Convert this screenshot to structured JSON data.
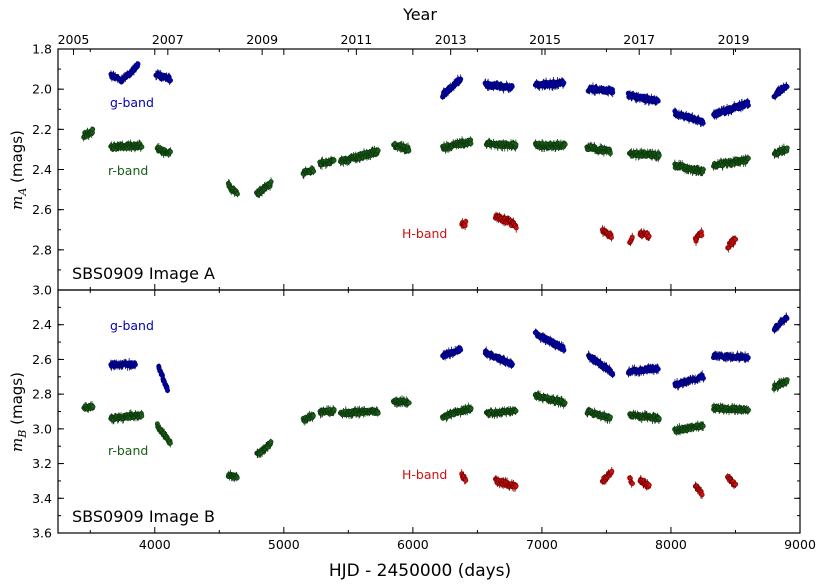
{
  "chart_data": {
    "type": "scatter",
    "xlabel": "HJD - 2450000 (days)",
    "top_axis_label": "Year",
    "xlim": [
      3250,
      9000
    ],
    "x_ticks": [
      "4000",
      "5000",
      "6000",
      "7000",
      "8000",
      "9000"
    ],
    "x_tick_values": [
      4000,
      5000,
      6000,
      7000,
      8000,
      9000
    ],
    "year_ticks": [
      "2005",
      "2007",
      "2009",
      "2011",
      "2013",
      "2015",
      "2017",
      "2019"
    ],
    "year_tick_values": [
      3370,
      4101,
      4832,
      5562,
      6293,
      7024,
      7754,
      8485
    ],
    "colors": {
      "g": "#0000b4",
      "r": "#1a5e1a",
      "H": "#cc1111"
    },
    "panels": [
      {
        "id": "A",
        "title": "SBS0909 Image A",
        "ylabel_main": "m",
        "ylabel_sub": "A",
        "ylabel_unit": " (mags)",
        "ylim": [
          1.8,
          3.0
        ],
        "y_ticks": [
          "1.8",
          "2.0",
          "2.2",
          "2.4",
          "2.6",
          "2.8",
          "3.0"
        ],
        "y_tick_values": [
          1.8,
          2.0,
          2.2,
          2.4,
          2.6,
          2.8,
          3.0
        ],
        "band_labels": {
          "g": "g-band",
          "r": "r-band",
          "H": "H-band"
        },
        "series": [
          {
            "name": "g-band",
            "band": "g",
            "segments": [
              [
                3660,
                3720,
                1.93,
                1.95
              ],
              [
                3740,
                3870,
                1.96,
                1.88
              ],
              [
                4010,
                4120,
                1.93,
                1.95
              ],
              [
                6230,
                6370,
                2.03,
                1.95
              ],
              [
                6560,
                6770,
                1.98,
                1.99
              ],
              [
                6950,
                7170,
                1.98,
                1.97
              ],
              [
                7360,
                7550,
                2.0,
                2.01
              ],
              [
                7670,
                7900,
                2.03,
                2.06
              ],
              [
                8030,
                8250,
                2.12,
                2.16
              ],
              [
                8330,
                8600,
                2.13,
                2.07
              ],
              [
                8800,
                8900,
                2.03,
                1.98
              ]
            ]
          },
          {
            "name": "r-band",
            "band": "r",
            "segments": [
              [
                3450,
                3520,
                2.23,
                2.21
              ],
              [
                3660,
                3900,
                2.29,
                2.28
              ],
              [
                4020,
                4120,
                2.3,
                2.32
              ],
              [
                4570,
                4640,
                2.48,
                2.52
              ],
              [
                4790,
                4900,
                2.52,
                2.47
              ],
              [
                5150,
                5230,
                2.42,
                2.4
              ],
              [
                5280,
                5390,
                2.37,
                2.36
              ],
              [
                5440,
                5730,
                2.36,
                2.31
              ],
              [
                5850,
                5970,
                2.28,
                2.3
              ],
              [
                6230,
                6450,
                2.29,
                2.26
              ],
              [
                6570,
                6800,
                2.27,
                2.28
              ],
              [
                6950,
                7180,
                2.28,
                2.28
              ],
              [
                7350,
                7530,
                2.29,
                2.31
              ],
              [
                7680,
                7910,
                2.32,
                2.33
              ],
              [
                8030,
                8250,
                2.38,
                2.41
              ],
              [
                8330,
                8600,
                2.38,
                2.35
              ],
              [
                8800,
                8900,
                2.32,
                2.3
              ]
            ]
          },
          {
            "name": "H-band",
            "band": "H",
            "segments": [
              [
                6380,
                6410,
                2.67,
                2.67
              ],
              [
                6640,
                6800,
                2.63,
                2.68
              ],
              [
                7470,
                7540,
                2.71,
                2.73
              ],
              [
                7680,
                7700,
                2.76,
                2.74
              ],
              [
                7760,
                7830,
                2.72,
                2.73
              ],
              [
                8190,
                8240,
                2.75,
                2.72
              ],
              [
                8440,
                8500,
                2.78,
                2.75
              ]
            ]
          }
        ]
      },
      {
        "id": "B",
        "title": "SBS0909 Image B",
        "ylabel_main": "m",
        "ylabel_sub": "B",
        "ylabel_unit": " (mags)",
        "ylim": [
          2.2,
          3.6
        ],
        "y_ticks": [
          "2.4",
          "2.6",
          "2.8",
          "3.0",
          "3.2",
          "3.4",
          "3.6"
        ],
        "y_tick_values": [
          2.4,
          2.6,
          2.8,
          3.0,
          3.2,
          3.4,
          3.6
        ],
        "band_labels": {
          "g": "g-band",
          "r": "r-band",
          "H": "H-band"
        },
        "series": [
          {
            "name": "g-band",
            "band": "g",
            "segments": [
              [
                3660,
                3850,
                2.63,
                2.63
              ],
              [
                4030,
                4100,
                2.65,
                2.78
              ],
              [
                6230,
                6370,
                2.58,
                2.54
              ],
              [
                6560,
                6770,
                2.56,
                2.63
              ],
              [
                6950,
                7170,
                2.45,
                2.54
              ],
              [
                7360,
                7550,
                2.58,
                2.68
              ],
              [
                7670,
                7900,
                2.67,
                2.65
              ],
              [
                8030,
                8250,
                2.75,
                2.7
              ],
              [
                8330,
                8600,
                2.58,
                2.59
              ],
              [
                8800,
                8900,
                2.42,
                2.36
              ]
            ]
          },
          {
            "name": "r-band",
            "band": "r",
            "segments": [
              [
                3450,
                3520,
                2.88,
                2.87
              ],
              [
                3660,
                3900,
                2.94,
                2.92
              ],
              [
                4020,
                4120,
                2.98,
                3.08
              ],
              [
                4570,
                4640,
                3.27,
                3.28
              ],
              [
                4790,
                4900,
                3.15,
                3.08
              ],
              [
                5150,
                5230,
                2.95,
                2.92
              ],
              [
                5280,
                5390,
                2.9,
                2.9
              ],
              [
                5440,
                5730,
                2.91,
                2.9
              ],
              [
                5850,
                5970,
                2.84,
                2.85
              ],
              [
                6230,
                6450,
                2.93,
                2.88
              ],
              [
                6570,
                6800,
                2.91,
                2.9
              ],
              [
                6950,
                7180,
                2.81,
                2.85
              ],
              [
                7350,
                7530,
                2.9,
                2.94
              ],
              [
                7680,
                7910,
                2.92,
                2.94
              ],
              [
                8030,
                8250,
                3.01,
                2.98
              ],
              [
                8330,
                8600,
                2.88,
                2.89
              ],
              [
                8800,
                8900,
                2.76,
                2.72
              ]
            ]
          },
          {
            "name": "H-band",
            "band": "H",
            "segments": [
              [
                6380,
                6410,
                3.27,
                3.29
              ],
              [
                6640,
                6800,
                3.3,
                3.33
              ],
              [
                7470,
                7540,
                3.3,
                3.25
              ],
              [
                7680,
                7700,
                3.28,
                3.32
              ],
              [
                7760,
                7830,
                3.29,
                3.33
              ],
              [
                8190,
                8240,
                3.33,
                3.37
              ],
              [
                8440,
                8500,
                3.28,
                3.33
              ]
            ]
          }
        ]
      }
    ]
  }
}
